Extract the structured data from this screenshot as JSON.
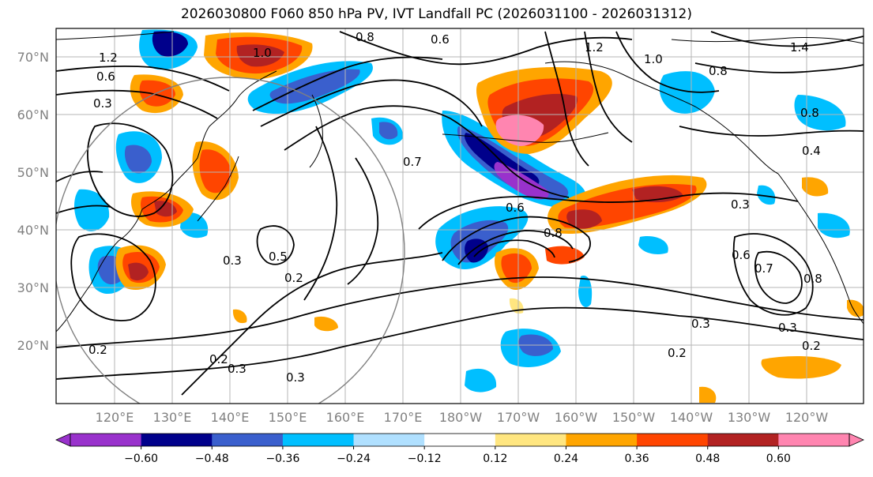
{
  "title": "2026030800 F060 850 hPa PV, IVT Landfall PC (2026031100 - 2026031312)",
  "lat_labels": [
    "70°N",
    "60°N",
    "50°N",
    "40°N",
    "30°N",
    "20°N"
  ],
  "lon_labels": [
    "120°E",
    "130°E",
    "140°E",
    "150°E",
    "160°E",
    "170°E",
    "180°W",
    "170°W",
    "160°W",
    "150°W",
    "140°W",
    "130°W",
    "120°W"
  ],
  "colorbar": {
    "ticks": [
      "−0.60",
      "−0.48",
      "−0.36",
      "−0.24",
      "−0.12",
      "0.12",
      "0.24",
      "0.36",
      "0.48",
      "0.60"
    ],
    "colors": [
      "#9932cc",
      "#00008b",
      "#3a5fcd",
      "#00bfff",
      "#b0e0ff",
      "#ffffff",
      "#ffe680",
      "#ffa500",
      "#ff4500",
      "#b22222",
      "#ff85b0"
    ]
  },
  "contour_labels": [
    "0.6",
    "0.8",
    "1.0",
    "1.2",
    "1.4",
    "1.2",
    "1.0",
    "0.8",
    "0.6",
    "0.3",
    "0.8",
    "0.4",
    "0.7",
    "0.5",
    "0.2",
    "0.3",
    "0.2",
    "0.3",
    "0.2",
    "0.3",
    "0.6",
    "0.8",
    "0.3",
    "0.2",
    "0.6",
    "0.7",
    "0.8",
    "0.3",
    "0.2",
    "0.3"
  ]
}
